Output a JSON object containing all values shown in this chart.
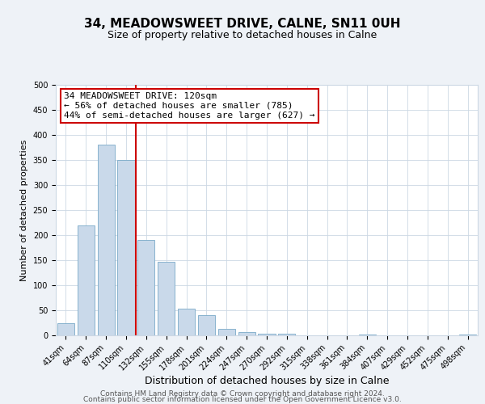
{
  "title": "34, MEADOWSWEET DRIVE, CALNE, SN11 0UH",
  "subtitle": "Size of property relative to detached houses in Calne",
  "xlabel": "Distribution of detached houses by size in Calne",
  "ylabel": "Number of detached properties",
  "bar_labels": [
    "41sqm",
    "64sqm",
    "87sqm",
    "110sqm",
    "132sqm",
    "155sqm",
    "178sqm",
    "201sqm",
    "224sqm",
    "247sqm",
    "270sqm",
    "292sqm",
    "315sqm",
    "338sqm",
    "361sqm",
    "384sqm",
    "407sqm",
    "429sqm",
    "452sqm",
    "475sqm",
    "498sqm"
  ],
  "bar_values": [
    25,
    220,
    380,
    350,
    190,
    147,
    53,
    40,
    13,
    7,
    4,
    4,
    0,
    0,
    0,
    2,
    0,
    0,
    0,
    0,
    2
  ],
  "bar_color": "#c9d9ea",
  "bar_edgecolor": "#7aaac8",
  "vline_color": "#cc0000",
  "ylim": [
    0,
    500
  ],
  "yticks": [
    0,
    50,
    100,
    150,
    200,
    250,
    300,
    350,
    400,
    450,
    500
  ],
  "annotation_line1": "34 MEADOWSWEET DRIVE: 120sqm",
  "annotation_line2": "← 56% of detached houses are smaller (785)",
  "annotation_line3": "44% of semi-detached houses are larger (627) →",
  "annotation_box_edgecolor": "#cc0000",
  "footer_line1": "Contains HM Land Registry data © Crown copyright and database right 2024.",
  "footer_line2": "Contains public sector information licensed under the Open Government Licence v3.0.",
  "background_color": "#eef2f7",
  "plot_background": "#ffffff",
  "grid_color": "#ccd8e4",
  "title_fontsize": 11,
  "subtitle_fontsize": 9,
  "xlabel_fontsize": 9,
  "ylabel_fontsize": 8,
  "tick_fontsize": 7,
  "annotation_fontsize": 8,
  "footer_fontsize": 6.5
}
